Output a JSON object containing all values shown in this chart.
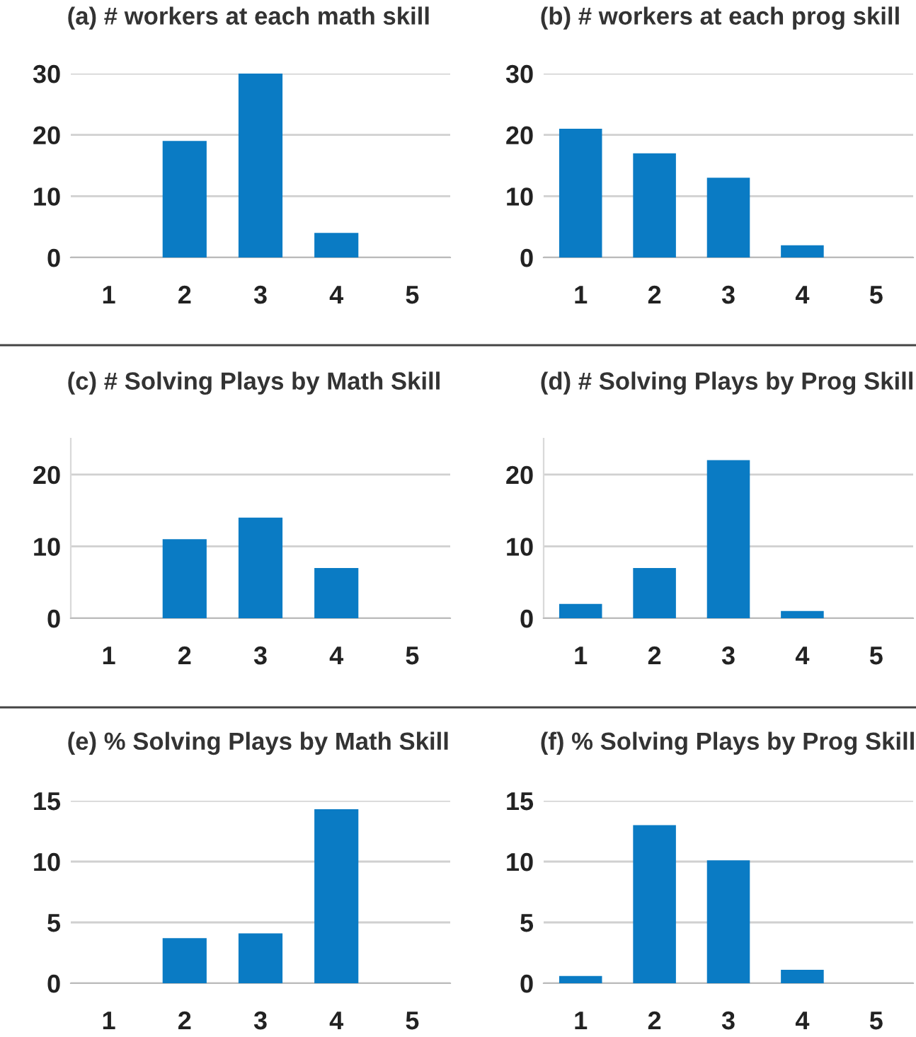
{
  "chart_data": [
    {
      "type": "bar",
      "title": "(a) # workers at each math skill",
      "categories": [
        "1",
        "2",
        "3",
        "4",
        "5"
      ],
      "values": [
        0,
        19,
        30,
        4,
        0
      ],
      "color": "#0a7bc4",
      "ylim": [
        0,
        30
      ],
      "yticks": [
        0,
        10,
        20,
        30
      ],
      "grid": "y"
    },
    {
      "type": "bar",
      "title": "(c) # Solving Plays by Math Skill",
      "categories": [
        "1",
        "2",
        "3",
        "4",
        "5"
      ],
      "values": [
        0,
        11,
        14,
        7,
        0
      ],
      "color": "#0a7bc4",
      "ylim": [
        0,
        25
      ],
      "yticks": [
        0,
        10,
        20
      ],
      "grid": "y"
    },
    {
      "type": "bar",
      "title": "(e) % Solving Plays by Math Skill",
      "categories": [
        "1",
        "2",
        "3",
        "4",
        "5"
      ],
      "values": [
        0,
        3.7,
        4.1,
        14.3,
        0
      ],
      "color": "#0a7bc4",
      "ylim": [
        0,
        15
      ],
      "yticks": [
        0,
        5,
        10,
        15
      ],
      "grid": "y"
    },
    {
      "type": "bar",
      "title": "(b) # workers at each prog skill",
      "categories": [
        "1",
        "2",
        "3",
        "4",
        "5"
      ],
      "values": [
        21,
        17,
        13,
        2,
        0
      ],
      "color": "#0a7bc4",
      "ylim": [
        0,
        30
      ],
      "yticks": [
        0,
        10,
        20,
        30
      ],
      "grid": "y"
    },
    {
      "type": "bar",
      "title": "(d) # Solving Plays by Prog Skill",
      "categories": [
        "1",
        "2",
        "3",
        "4",
        "5"
      ],
      "values": [
        2,
        7,
        22,
        1,
        0
      ],
      "color": "#0a7bc4",
      "ylim": [
        0,
        25
      ],
      "yticks": [
        0,
        10,
        20
      ],
      "grid": "y"
    },
    {
      "type": "bar",
      "title": "(f) % Solving Plays by Prog Skill",
      "categories": [
        "1",
        "2",
        "3",
        "4",
        "5"
      ],
      "values": [
        0.6,
        13,
        10.1,
        1.1,
        0
      ],
      "color": "#0a7bc4",
      "ylim": [
        0,
        15
      ],
      "yticks": [
        0,
        5,
        10,
        15
      ],
      "grid": "y"
    }
  ]
}
